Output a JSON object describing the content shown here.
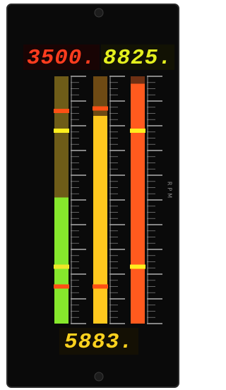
{
  "displays": [
    {
      "text": "3500.",
      "color": "#ff3c1e"
    },
    {
      "text": "8825.",
      "color": "#e4f01e"
    },
    {
      "text": "5883.",
      "color": "#ffd21e"
    }
  ],
  "unit_label": "RPM",
  "bars": [
    {
      "level": 51,
      "color": "#86e82c",
      "track": "#6e5c18",
      "markers": [
        {
          "level": 86,
          "color": "#ff5014"
        },
        {
          "level": 78,
          "color": "#fff01e"
        },
        {
          "level": 23,
          "color": "#f0e628"
        },
        {
          "level": 15,
          "color": "#ff5014"
        }
      ]
    },
    {
      "level": 84,
      "color": "#ffc81e",
      "track": "#6e4a14",
      "markers": [
        {
          "level": 87,
          "color": "#ff5014"
        },
        {
          "level": 15,
          "color": "#ff5014"
        }
      ]
    },
    {
      "level": 97,
      "color": "#ff5a1e",
      "track": "#6e3014",
      "markers": [
        {
          "level": 78,
          "color": "#fff01e"
        },
        {
          "level": 23,
          "color": "#fff01e"
        }
      ]
    }
  ]
}
